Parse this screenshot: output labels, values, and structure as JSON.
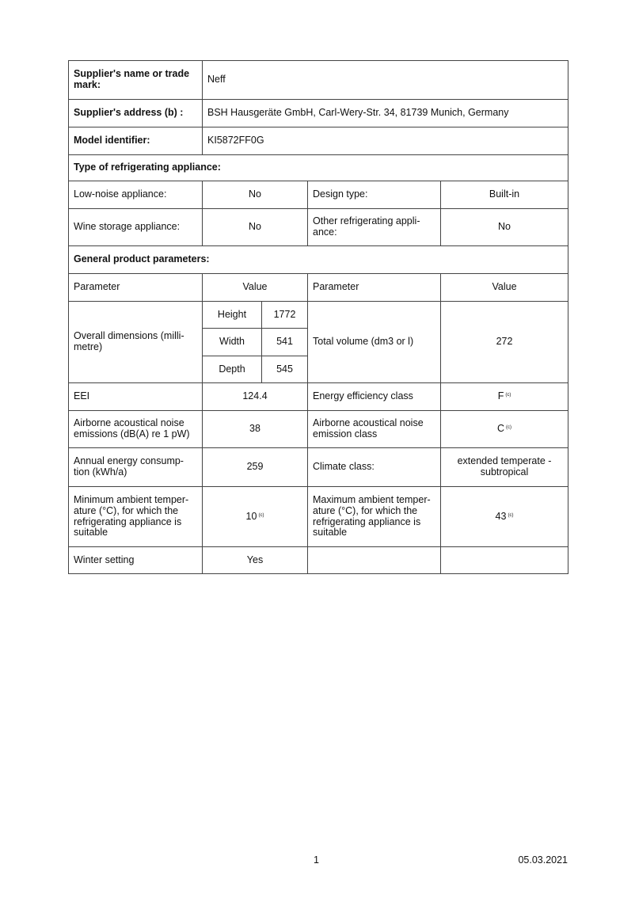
{
  "supplier": {
    "name_label": "Supplier's name or trade mark:",
    "name": "Neff",
    "address_label": "Supplier's address  (b) :",
    "address": "BSH Hausgeräte GmbH, Carl-Wery-Str. 34, 81739 Munich, Germany",
    "model_label": "Model identifier:",
    "model": "KI5872FF0G"
  },
  "type_section": {
    "title": "Type of refrigerating appliance:",
    "low_noise_label": "Low-noise appliance:",
    "low_noise": "No",
    "design_type_label": "Design type:",
    "design_type": "Built-in",
    "wine_label": "Wine storage appliance:",
    "wine": "No",
    "other_label": "Other refrigerating appli-ance:",
    "other": "No"
  },
  "general": {
    "title": "General product parameters:",
    "col_parameter": "Parameter",
    "col_value": "Value",
    "dimensions_label": "Overall dimensions (milli-metre)",
    "height_label": "Height",
    "height": "1772",
    "width_label": "Width",
    "width": "541",
    "depth_label": "Depth",
    "depth": "545",
    "volume_label": "Total volume (dm3 or l)",
    "volume": "272",
    "eei_label": "EEI",
    "eei": "124.4",
    "efficiency_class_label": "Energy efficiency class",
    "efficiency_class": "F",
    "efficiency_note": "(c)",
    "noise_label": "Airborne acoustical noise emissions (dB(A) re 1 pW)",
    "noise": "38",
    "noise_class_label": "Airborne acoustical noise emission class",
    "noise_class": "C",
    "noise_class_note": "(c)",
    "annual_label": "Annual energy consump-tion (kWh/a)",
    "annual": "259",
    "climate_label": "Climate class:",
    "climate": "extended temperate - subtropical",
    "min_temp_label": "Minimum ambient temper-ature (°C), for which the refrigerating appliance is suitable",
    "min_temp": "10",
    "min_temp_note": "(c)",
    "max_temp_label": "Maximum ambient temper-ature (°C), for which the refrigerating appliance is suitable",
    "max_temp": "43",
    "max_temp_note": "(c)",
    "winter_label": "Winter setting",
    "winter": "Yes"
  },
  "footer": {
    "page": "1",
    "date": "05.03.2021"
  }
}
